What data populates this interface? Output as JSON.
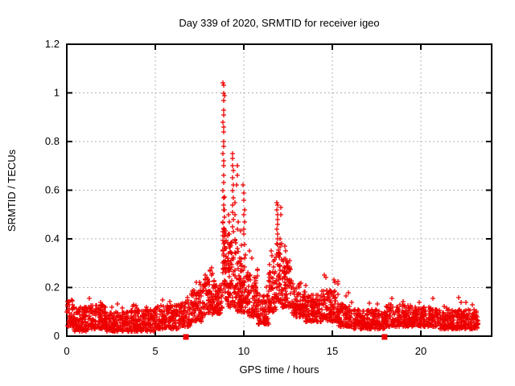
{
  "chart_data": {
    "type": "scatter",
    "title": "Day 339 of 2020, SRMTID for receiver igeo",
    "xlabel": "GPS time / hours",
    "ylabel": "SRMTID / TECUs",
    "xlim": [
      0,
      24
    ],
    "ylim": [
      0,
      1.2
    ],
    "xtick_values": [
      0,
      5,
      10,
      15,
      20
    ],
    "xtick_labels": [
      "0",
      "5",
      "10",
      "15",
      "20"
    ],
    "ytick_values": [
      0,
      0.2,
      0.4,
      0.6,
      0.8,
      1.0,
      1.2
    ],
    "ytick_labels": [
      "0",
      "0.2",
      "0.4",
      "0.6",
      "0.8",
      "1",
      "1.2"
    ],
    "grid": true,
    "legend_position": "none",
    "marker": {
      "shape": "plus",
      "color": "#ee0000",
      "size": 7
    },
    "grid_color": "#b0b0b0",
    "border_color": "#000000",
    "background": "#ffffff",
    "seed": 339,
    "square_points": [
      [
        6.73,
        0.0
      ],
      [
        17.95,
        0.0
      ]
    ],
    "peak_points": [
      [
        8.84,
        1.04
      ],
      [
        8.88,
        1.03
      ],
      [
        8.86,
        1.0
      ],
      [
        8.89,
        0.99
      ],
      [
        8.85,
        0.97
      ],
      [
        8.87,
        0.93
      ],
      [
        8.86,
        0.91
      ],
      [
        8.84,
        0.88
      ],
      [
        8.88,
        0.86
      ],
      [
        8.86,
        0.84
      ],
      [
        8.85,
        0.8
      ],
      [
        8.87,
        0.78
      ],
      [
        8.84,
        0.75
      ],
      [
        8.86,
        0.72
      ],
      [
        8.88,
        0.7
      ],
      [
        8.85,
        0.66
      ],
      [
        8.87,
        0.63
      ],
      [
        8.84,
        0.6
      ],
      [
        8.86,
        0.57
      ],
      [
        8.88,
        0.54
      ],
      [
        8.85,
        0.52
      ],
      [
        8.9,
        0.49
      ],
      [
        8.83,
        0.47
      ],
      [
        8.87,
        0.44
      ],
      [
        8.89,
        0.41
      ],
      [
        8.85,
        0.38
      ],
      [
        8.82,
        0.35
      ],
      [
        8.88,
        0.33
      ],
      [
        8.84,
        0.3
      ],
      [
        8.9,
        0.28
      ],
      [
        8.81,
        0.26
      ],
      [
        8.93,
        0.52
      ],
      [
        8.95,
        0.42
      ],
      [
        8.97,
        0.36
      ],
      [
        9.35,
        0.75
      ],
      [
        9.38,
        0.73
      ],
      [
        9.36,
        0.7
      ],
      [
        9.4,
        0.68
      ],
      [
        9.37,
        0.65
      ],
      [
        9.39,
        0.62
      ],
      [
        9.36,
        0.6
      ],
      [
        9.41,
        0.57
      ],
      [
        9.38,
        0.54
      ],
      [
        9.35,
        0.51
      ],
      [
        9.4,
        0.48
      ],
      [
        9.37,
        0.45
      ],
      [
        9.42,
        0.43
      ],
      [
        9.62,
        0.7
      ],
      [
        9.65,
        0.66
      ],
      [
        9.6,
        0.62
      ],
      [
        9.67,
        0.47
      ],
      [
        9.63,
        0.44
      ],
      [
        9.97,
        0.62
      ],
      [
        10.0,
        0.59
      ],
      [
        9.98,
        0.56
      ],
      [
        10.03,
        0.52
      ],
      [
        9.99,
        0.5
      ],
      [
        10.05,
        0.47
      ],
      [
        10.0,
        0.44
      ],
      [
        10.02,
        0.42
      ],
      [
        11.88,
        0.55
      ],
      [
        11.9,
        0.54
      ],
      [
        11.87,
        0.52
      ],
      [
        11.92,
        0.5
      ],
      [
        11.89,
        0.48
      ],
      [
        11.91,
        0.46
      ],
      [
        11.88,
        0.44
      ],
      [
        11.93,
        0.42
      ],
      [
        11.9,
        0.4
      ],
      [
        11.86,
        0.38
      ],
      [
        12.08,
        0.53
      ],
      [
        12.1,
        0.5
      ],
      [
        12.06,
        0.4
      ],
      [
        12.12,
        0.38
      ],
      [
        9.15,
        0.5
      ],
      [
        9.2,
        0.47
      ],
      [
        9.5,
        0.55
      ],
      [
        9.52,
        0.5
      ],
      [
        10.3,
        0.35
      ],
      [
        10.45,
        0.32
      ],
      [
        14.55,
        0.25
      ],
      [
        14.62,
        0.24
      ],
      [
        15.08,
        0.23
      ],
      [
        15.15,
        0.22
      ],
      [
        7.5,
        0.22
      ],
      [
        7.56,
        0.21
      ],
      [
        12.3,
        0.37
      ],
      [
        12.38,
        0.35
      ],
      [
        12.5,
        0.3
      ],
      [
        11.55,
        0.35
      ],
      [
        11.6,
        0.33
      ],
      [
        0.1,
        0.14
      ],
      [
        1.9,
        0.14
      ],
      [
        5.4,
        0.15
      ],
      [
        2.0,
        0.13
      ],
      [
        22.9,
        0.13
      ],
      [
        19.9,
        0.14
      ],
      [
        8.2,
        0.28
      ],
      [
        8.1,
        0.27
      ]
    ],
    "noise_segments": [
      {
        "x0": 0.0,
        "x1": 0.35,
        "n": 45,
        "lo": 0.04,
        "hi": 0.15,
        "tail": 0.02
      },
      {
        "x0": 0.35,
        "x1": 1.2,
        "n": 110,
        "lo": 0.02,
        "hi": 0.12,
        "tail": 0.02
      },
      {
        "x0": 1.2,
        "x1": 2.2,
        "n": 120,
        "lo": 0.03,
        "hi": 0.13,
        "tail": 0.03
      },
      {
        "x0": 2.2,
        "x1": 3.4,
        "n": 140,
        "lo": 0.02,
        "hi": 0.1,
        "tail": 0.03
      },
      {
        "x0": 3.4,
        "x1": 5.0,
        "n": 190,
        "lo": 0.02,
        "hi": 0.11,
        "tail": 0.04
      },
      {
        "x0": 5.0,
        "x1": 6.3,
        "n": 150,
        "lo": 0.03,
        "hi": 0.13,
        "tail": 0.03
      },
      {
        "x0": 6.3,
        "x1": 7.0,
        "n": 80,
        "lo": 0.04,
        "hi": 0.14,
        "tail": 0.03
      },
      {
        "x0": 7.0,
        "x1": 7.7,
        "n": 85,
        "lo": 0.06,
        "hi": 0.19,
        "tail": 0.04
      },
      {
        "x0": 7.7,
        "x1": 8.45,
        "n": 90,
        "lo": 0.09,
        "hi": 0.26,
        "tail": 0.03
      },
      {
        "x0": 8.45,
        "x1": 8.8,
        "n": 45,
        "lo": 0.09,
        "hi": 0.22,
        "tail": 0.05
      },
      {
        "x0": 8.8,
        "x1": 9.0,
        "n": 40,
        "lo": 0.15,
        "hi": 0.5,
        "tail": 0.1
      },
      {
        "x0": 9.0,
        "x1": 9.6,
        "n": 95,
        "lo": 0.12,
        "hi": 0.42,
        "tail": 0.06
      },
      {
        "x0": 9.6,
        "x1": 10.1,
        "n": 95,
        "lo": 0.1,
        "hi": 0.38,
        "tail": 0.05
      },
      {
        "x0": 10.1,
        "x1": 10.8,
        "n": 90,
        "lo": 0.08,
        "hi": 0.28,
        "tail": 0.04
      },
      {
        "x0": 10.8,
        "x1": 11.4,
        "n": 75,
        "lo": 0.05,
        "hi": 0.17,
        "tail": 0.04
      },
      {
        "x0": 11.4,
        "x1": 11.8,
        "n": 55,
        "lo": 0.1,
        "hi": 0.32,
        "tail": 0.05
      },
      {
        "x0": 11.8,
        "x1": 12.15,
        "n": 55,
        "lo": 0.14,
        "hi": 0.38,
        "tail": 0.05
      },
      {
        "x0": 12.15,
        "x1": 12.7,
        "n": 80,
        "lo": 0.12,
        "hi": 0.32,
        "tail": 0.05
      },
      {
        "x0": 12.7,
        "x1": 13.5,
        "n": 100,
        "lo": 0.08,
        "hi": 0.22,
        "tail": 0.04
      },
      {
        "x0": 13.5,
        "x1": 14.3,
        "n": 100,
        "lo": 0.06,
        "hi": 0.17,
        "tail": 0.04
      },
      {
        "x0": 14.3,
        "x1": 15.35,
        "n": 125,
        "lo": 0.06,
        "hi": 0.19,
        "tail": 0.05
      },
      {
        "x0": 15.35,
        "x1": 16.2,
        "n": 100,
        "lo": 0.04,
        "hi": 0.14,
        "tail": 0.04
      },
      {
        "x0": 16.2,
        "x1": 18.0,
        "n": 210,
        "lo": 0.03,
        "hi": 0.11,
        "tail": 0.03
      },
      {
        "x0": 18.0,
        "x1": 19.6,
        "n": 185,
        "lo": 0.04,
        "hi": 0.13,
        "tail": 0.03
      },
      {
        "x0": 19.6,
        "x1": 21.0,
        "n": 160,
        "lo": 0.04,
        "hi": 0.12,
        "tail": 0.03
      },
      {
        "x0": 21.0,
        "x1": 23.25,
        "n": 250,
        "lo": 0.03,
        "hi": 0.11,
        "tail": 0.04
      }
    ]
  }
}
